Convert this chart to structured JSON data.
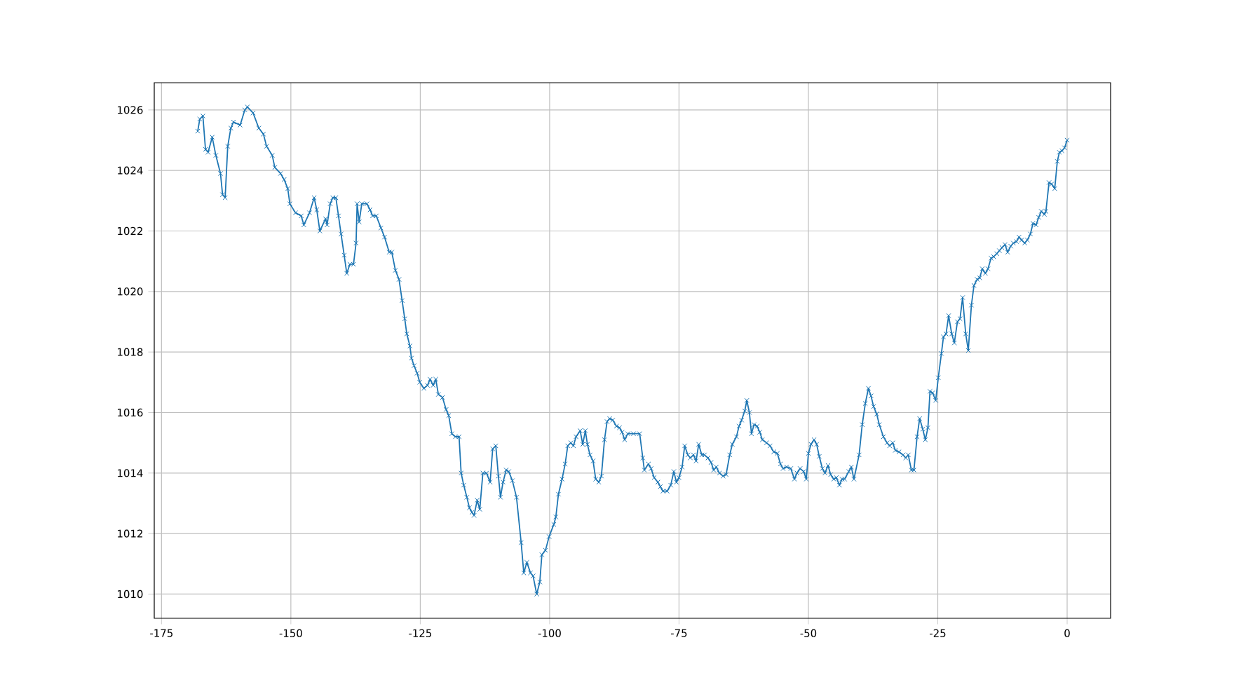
{
  "chart_data": {
    "type": "line",
    "marker": "cross",
    "line_style": "solid",
    "grid": true,
    "xlim": [
      -176.4,
      8.4
    ],
    "ylim": [
      1009.2,
      1026.9
    ],
    "xticks": [
      -175,
      -150,
      -125,
      -100,
      -75,
      -50,
      -25,
      0
    ],
    "yticks": [
      1010,
      1012,
      1014,
      1016,
      1018,
      1020,
      1022,
      1024,
      1026
    ],
    "series": [
      {
        "color": "#1f77b4",
        "x": [
          -168.0,
          -167.6,
          -167.0,
          -166.5,
          -166.0,
          -165.2,
          -164.5,
          -163.6,
          -163.2,
          -162.7,
          -162.2,
          -161.6,
          -161.1,
          -159.8,
          -158.9,
          -158.4,
          -157.3,
          -156.2,
          -155.3,
          -154.7,
          -153.6,
          -153.1,
          -152.0,
          -151.3,
          -150.6,
          -150.2,
          -149.1,
          -148.0,
          -147.5,
          -146.4,
          -145.5,
          -145.0,
          -144.4,
          -143.3,
          -143.0,
          -142.4,
          -141.9,
          -141.3,
          -140.8,
          -140.3,
          -139.7,
          -139.2,
          -138.6,
          -137.9,
          -137.4,
          -137.2,
          -136.8,
          -136.3,
          -135.3,
          -134.7,
          -134.2,
          -133.5,
          -132.6,
          -131.9,
          -131.0,
          -130.5,
          -129.8,
          -129.1,
          -128.5,
          -128.0,
          -127.6,
          -127.0,
          -126.7,
          -126.2,
          -125.6,
          -125.1,
          -124.3,
          -123.6,
          -123.1,
          -122.5,
          -122.0,
          -121.5,
          -120.7,
          -120.0,
          -119.5,
          -118.9,
          -118.2,
          -117.5,
          -117.1,
          -116.6,
          -116.0,
          -115.5,
          -115.0,
          -114.6,
          -114.0,
          -113.5,
          -112.9,
          -112.2,
          -111.5,
          -111.0,
          -110.4,
          -109.9,
          -109.5,
          -109.0,
          -108.4,
          -107.9,
          -107.2,
          -106.4,
          -105.5,
          -105.0,
          -104.4,
          -103.7,
          -103.2,
          -102.5,
          -101.9,
          -101.5,
          -100.8,
          -100.1,
          -99.2,
          -98.8,
          -98.3,
          -97.6,
          -97.0,
          -96.5,
          -95.9,
          -95.4,
          -94.9,
          -94.1,
          -93.6,
          -93.1,
          -92.7,
          -92.2,
          -91.6,
          -91.1,
          -90.5,
          -90.0,
          -89.4,
          -88.9,
          -88.4,
          -87.8,
          -87.1,
          -86.5,
          -86.0,
          -85.5,
          -84.9,
          -83.8,
          -82.6,
          -82.0,
          -81.7,
          -80.9,
          -80.4,
          -79.8,
          -79.1,
          -78.6,
          -78.1,
          -77.3,
          -76.6,
          -76.0,
          -75.5,
          -75.0,
          -74.4,
          -73.9,
          -73.3,
          -72.8,
          -72.2,
          -71.7,
          -71.2,
          -70.6,
          -70.1,
          -69.4,
          -68.8,
          -68.3,
          -67.8,
          -67.2,
          -66.5,
          -65.9,
          -65.2,
          -64.7,
          -63.9,
          -63.4,
          -62.9,
          -62.3,
          -61.9,
          -61.4,
          -61.0,
          -60.5,
          -59.9,
          -59.4,
          -58.9,
          -58.1,
          -57.4,
          -56.7,
          -56.0,
          -55.4,
          -54.9,
          -54.2,
          -53.4,
          -52.7,
          -52.2,
          -51.6,
          -50.9,
          -50.4,
          -50.0,
          -49.5,
          -48.9,
          -48.4,
          -47.9,
          -47.3,
          -46.8,
          -46.2,
          -45.7,
          -45.1,
          -44.6,
          -44.0,
          -43.5,
          -43.0,
          -42.2,
          -41.7,
          -41.2,
          -40.2,
          -39.6,
          -39.0,
          -38.4,
          -37.9,
          -37.4,
          -36.8,
          -36.3,
          -35.5,
          -34.8,
          -34.3,
          -33.7,
          -33.2,
          -32.5,
          -31.7,
          -31.2,
          -30.7,
          -30.1,
          -29.6,
          -29.0,
          -28.5,
          -27.9,
          -27.4,
          -26.9,
          -26.5,
          -26.0,
          -25.4,
          -24.9,
          -24.3,
          -23.9,
          -23.4,
          -22.9,
          -22.3,
          -21.8,
          -21.2,
          -20.7,
          -20.2,
          -19.6,
          -19.1,
          -18.5,
          -18.0,
          -17.4,
          -16.9,
          -16.4,
          -15.8,
          -15.3,
          -14.7,
          -14.2,
          -13.6,
          -13.1,
          -12.6,
          -12.0,
          -11.5,
          -10.9,
          -10.4,
          -9.8,
          -9.3,
          -8.8,
          -8.2,
          -7.7,
          -7.1,
          -6.6,
          -6.0,
          -5.5,
          -5.0,
          -4.4,
          -4.1,
          -3.5,
          -3.0,
          -2.4,
          -1.9,
          -1.5,
          -1.0,
          -0.5,
          0.0
        ],
        "values": [
          1025.3,
          1025.7,
          1025.8,
          1024.7,
          1024.6,
          1025.1,
          1024.5,
          1023.9,
          1023.2,
          1023.1,
          1024.8,
          1025.4,
          1025.6,
          1025.5,
          1026.0,
          1026.1,
          1025.9,
          1025.4,
          1025.2,
          1024.8,
          1024.5,
          1024.1,
          1023.9,
          1023.7,
          1023.4,
          1022.9,
          1022.6,
          1022.5,
          1022.2,
          1022.6,
          1023.1,
          1022.7,
          1022.0,
          1022.4,
          1022.2,
          1022.9,
          1023.1,
          1023.1,
          1022.5,
          1021.9,
          1021.2,
          1020.6,
          1020.9,
          1020.9,
          1021.6,
          1022.9,
          1022.3,
          1022.9,
          1022.9,
          1022.7,
          1022.5,
          1022.5,
          1022.1,
          1021.8,
          1021.3,
          1021.3,
          1020.7,
          1020.4,
          1019.7,
          1019.1,
          1018.6,
          1018.2,
          1017.8,
          1017.55,
          1017.3,
          1017.0,
          1016.8,
          1016.9,
          1017.1,
          1016.9,
          1017.1,
          1016.6,
          1016.5,
          1016.1,
          1015.9,
          1015.3,
          1015.2,
          1015.2,
          1014.0,
          1013.6,
          1013.2,
          1012.85,
          1012.7,
          1012.6,
          1013.1,
          1012.8,
          1014.0,
          1014.0,
          1013.7,
          1014.8,
          1014.9,
          1013.9,
          1013.2,
          1013.7,
          1014.1,
          1014.05,
          1013.75,
          1013.2,
          1011.7,
          1010.7,
          1011.05,
          1010.7,
          1010.6,
          1010.0,
          1010.4,
          1011.3,
          1011.45,
          1011.9,
          1012.3,
          1012.55,
          1013.3,
          1013.8,
          1014.3,
          1014.9,
          1015.0,
          1014.9,
          1015.2,
          1015.4,
          1014.95,
          1015.4,
          1014.95,
          1014.6,
          1014.4,
          1013.8,
          1013.7,
          1013.9,
          1015.1,
          1015.7,
          1015.8,
          1015.75,
          1015.55,
          1015.5,
          1015.35,
          1015.1,
          1015.3,
          1015.3,
          1015.3,
          1014.5,
          1014.1,
          1014.3,
          1014.15,
          1013.85,
          1013.7,
          1013.55,
          1013.4,
          1013.4,
          1013.6,
          1014.05,
          1013.7,
          1013.85,
          1014.2,
          1014.9,
          1014.6,
          1014.5,
          1014.6,
          1014.4,
          1014.95,
          1014.6,
          1014.6,
          1014.5,
          1014.35,
          1014.1,
          1014.2,
          1014.0,
          1013.9,
          1013.95,
          1014.6,
          1014.95,
          1015.2,
          1015.55,
          1015.75,
          1016.05,
          1016.4,
          1016.0,
          1015.3,
          1015.6,
          1015.55,
          1015.35,
          1015.1,
          1015.0,
          1014.9,
          1014.7,
          1014.65,
          1014.3,
          1014.15,
          1014.2,
          1014.15,
          1013.8,
          1014.0,
          1014.15,
          1014.05,
          1013.8,
          1014.65,
          1014.95,
          1015.1,
          1014.95,
          1014.55,
          1014.15,
          1014.0,
          1014.25,
          1013.95,
          1013.8,
          1013.85,
          1013.6,
          1013.8,
          1013.8,
          1014.05,
          1014.2,
          1013.8,
          1014.6,
          1015.6,
          1016.3,
          1016.8,
          1016.55,
          1016.2,
          1015.95,
          1015.6,
          1015.2,
          1015.0,
          1014.9,
          1015.0,
          1014.75,
          1014.7,
          1014.6,
          1014.5,
          1014.6,
          1014.1,
          1014.1,
          1015.2,
          1015.8,
          1015.45,
          1015.1,
          1015.5,
          1016.7,
          1016.65,
          1016.4,
          1017.15,
          1017.95,
          1018.5,
          1018.6,
          1019.2,
          1018.6,
          1018.3,
          1019.0,
          1019.1,
          1019.8,
          1018.6,
          1018.05,
          1019.55,
          1020.2,
          1020.4,
          1020.45,
          1020.75,
          1020.6,
          1020.75,
          1021.1,
          1021.15,
          1021.25,
          1021.35,
          1021.45,
          1021.55,
          1021.3,
          1021.5,
          1021.6,
          1021.65,
          1021.8,
          1021.7,
          1021.6,
          1021.7,
          1021.9,
          1022.25,
          1022.2,
          1022.45,
          1022.65,
          1022.55,
          1022.65,
          1023.6,
          1023.55,
          1023.4,
          1024.3,
          1024.6,
          1024.65,
          1024.75,
          1025.0
        ]
      }
    ]
  }
}
